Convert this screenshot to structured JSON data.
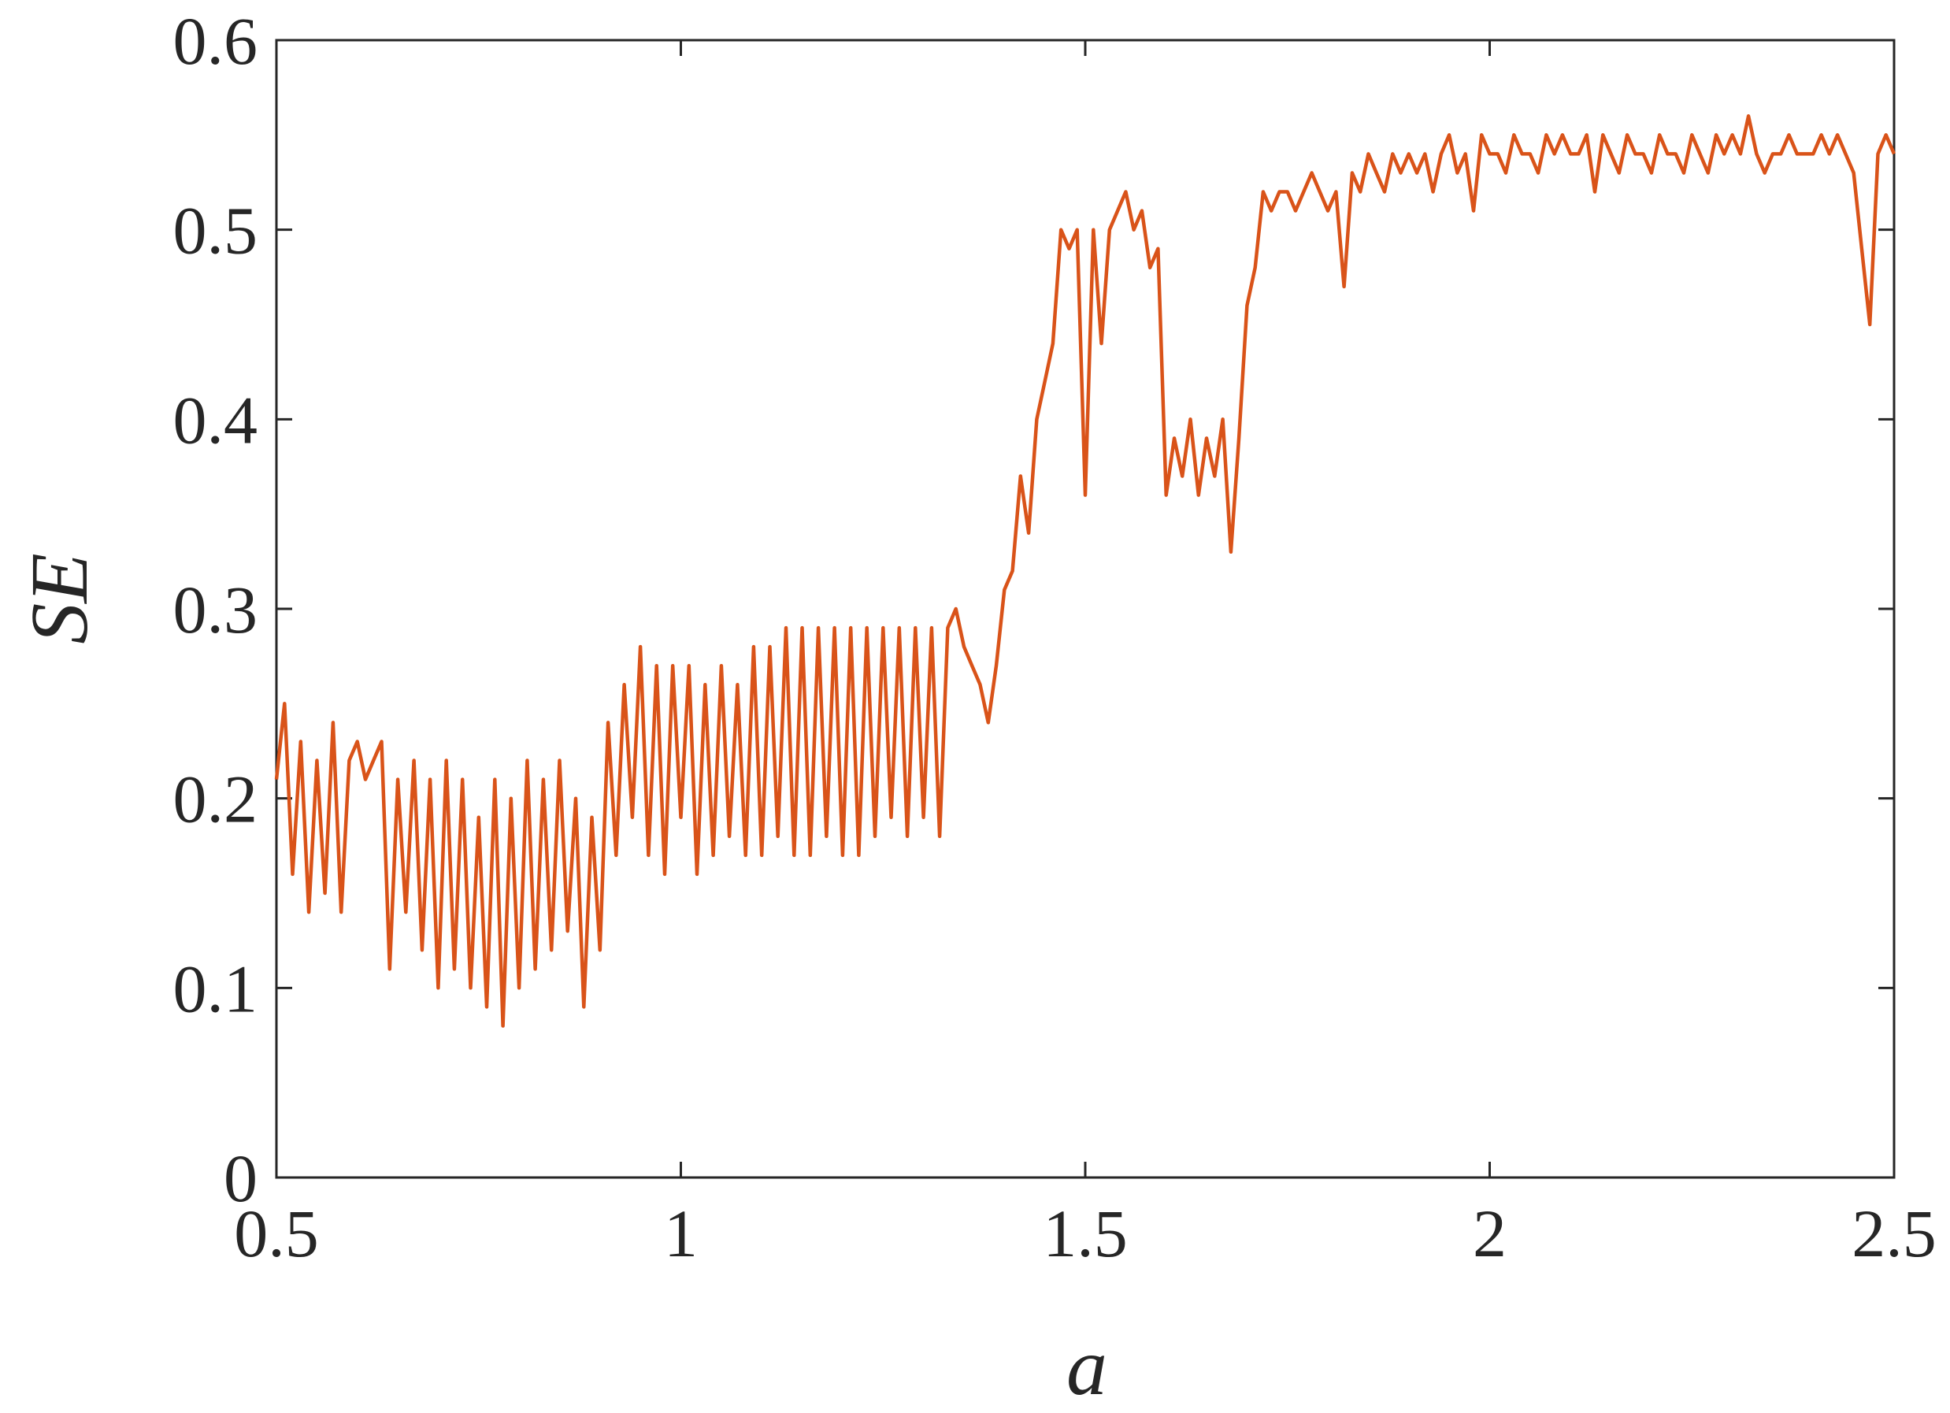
{
  "chart_data": {
    "type": "line",
    "xlabel": "a",
    "ylabel": "SE",
    "color": "#d95319",
    "x": [
      0.5,
      0.51,
      0.52,
      0.53,
      0.54,
      0.55,
      0.56,
      0.57,
      0.58,
      0.59,
      0.6,
      0.61,
      0.62,
      0.63,
      0.64,
      0.65,
      0.66,
      0.67,
      0.68,
      0.69,
      0.7,
      0.71,
      0.72,
      0.73,
      0.74,
      0.75,
      0.76,
      0.77,
      0.78,
      0.79,
      0.8,
      0.81,
      0.82,
      0.83,
      0.84,
      0.85,
      0.86,
      0.87,
      0.88,
      0.89,
      0.9,
      0.91,
      0.92,
      0.93,
      0.94,
      0.95,
      0.96,
      0.97,
      0.98,
      0.99,
      1.0,
      1.01,
      1.02,
      1.03,
      1.04,
      1.05,
      1.06,
      1.07,
      1.08,
      1.09,
      1.1,
      1.11,
      1.12,
      1.13,
      1.14,
      1.15,
      1.16,
      1.17,
      1.18,
      1.19,
      1.2,
      1.21,
      1.22,
      1.23,
      1.24,
      1.25,
      1.26,
      1.27,
      1.28,
      1.29,
      1.3,
      1.31,
      1.32,
      1.33,
      1.34,
      1.35,
      1.36,
      1.37,
      1.38,
      1.39,
      1.4,
      1.41,
      1.42,
      1.43,
      1.44,
      1.45,
      1.46,
      1.47,
      1.48,
      1.49,
      1.5,
      1.51,
      1.52,
      1.53,
      1.54,
      1.55,
      1.56,
      1.57,
      1.58,
      1.59,
      1.6,
      1.61,
      1.62,
      1.63,
      1.64,
      1.65,
      1.66,
      1.67,
      1.68,
      1.69,
      1.7,
      1.71,
      1.72,
      1.73,
      1.74,
      1.75,
      1.76,
      1.77,
      1.78,
      1.79,
      1.8,
      1.81,
      1.82,
      1.83,
      1.84,
      1.85,
      1.86,
      1.87,
      1.88,
      1.89,
      1.9,
      1.91,
      1.92,
      1.93,
      1.94,
      1.95,
      1.96,
      1.97,
      1.98,
      1.99,
      2.0,
      2.01,
      2.02,
      2.03,
      2.04,
      2.05,
      2.06,
      2.07,
      2.08,
      2.09,
      2.1,
      2.11,
      2.12,
      2.13,
      2.14,
      2.15,
      2.16,
      2.17,
      2.18,
      2.19,
      2.2,
      2.21,
      2.22,
      2.23,
      2.24,
      2.25,
      2.26,
      2.27,
      2.28,
      2.29,
      2.3,
      2.31,
      2.32,
      2.33,
      2.34,
      2.35,
      2.36,
      2.37,
      2.38,
      2.39,
      2.4,
      2.41,
      2.42,
      2.43,
      2.44,
      2.45,
      2.46,
      2.47,
      2.48,
      2.49,
      2.5
    ],
    "values": [
      0.21,
      0.25,
      0.16,
      0.23,
      0.14,
      0.22,
      0.15,
      0.24,
      0.14,
      0.22,
      0.23,
      0.21,
      0.22,
      0.23,
      0.11,
      0.21,
      0.14,
      0.22,
      0.12,
      0.21,
      0.1,
      0.22,
      0.11,
      0.21,
      0.1,
      0.19,
      0.09,
      0.21,
      0.08,
      0.2,
      0.1,
      0.22,
      0.11,
      0.21,
      0.12,
      0.22,
      0.13,
      0.2,
      0.09,
      0.19,
      0.12,
      0.24,
      0.17,
      0.26,
      0.19,
      0.28,
      0.17,
      0.27,
      0.16,
      0.27,
      0.19,
      0.27,
      0.16,
      0.26,
      0.17,
      0.27,
      0.18,
      0.26,
      0.17,
      0.28,
      0.17,
      0.28,
      0.18,
      0.29,
      0.17,
      0.29,
      0.17,
      0.29,
      0.18,
      0.29,
      0.17,
      0.29,
      0.17,
      0.29,
      0.18,
      0.29,
      0.19,
      0.29,
      0.18,
      0.29,
      0.19,
      0.29,
      0.18,
      0.29,
      0.3,
      0.28,
      0.27,
      0.26,
      0.24,
      0.27,
      0.31,
      0.32,
      0.37,
      0.34,
      0.4,
      0.42,
      0.44,
      0.5,
      0.49,
      0.5,
      0.36,
      0.5,
      0.44,
      0.5,
      0.51,
      0.52,
      0.5,
      0.51,
      0.48,
      0.49,
      0.36,
      0.39,
      0.37,
      0.4,
      0.36,
      0.39,
      0.37,
      0.4,
      0.33,
      0.39,
      0.46,
      0.48,
      0.52,
      0.51,
      0.52,
      0.52,
      0.51,
      0.52,
      0.53,
      0.52,
      0.51,
      0.52,
      0.47,
      0.53,
      0.52,
      0.54,
      0.53,
      0.52,
      0.54,
      0.53,
      0.54,
      0.53,
      0.54,
      0.52,
      0.54,
      0.55,
      0.53,
      0.54,
      0.51,
      0.55,
      0.54,
      0.54,
      0.53,
      0.55,
      0.54,
      0.54,
      0.53,
      0.55,
      0.54,
      0.55,
      0.54,
      0.54,
      0.55,
      0.52,
      0.55,
      0.54,
      0.53,
      0.55,
      0.54,
      0.54,
      0.53,
      0.55,
      0.54,
      0.54,
      0.53,
      0.55,
      0.54,
      0.53,
      0.55,
      0.54,
      0.55,
      0.54,
      0.56,
      0.54,
      0.53,
      0.54,
      0.54,
      0.55,
      0.54,
      0.54,
      0.54,
      0.55,
      0.54,
      0.55,
      0.54,
      0.53,
      0.49,
      0.45,
      0.54,
      0.55,
      0.54
    ],
    "xlim": [
      0.5,
      2.5
    ],
    "ylim": [
      0,
      0.6
    ],
    "xticks": [
      0.5,
      1,
      1.5,
      2,
      2.5
    ],
    "yticks": [
      0,
      0.1,
      0.2,
      0.3,
      0.4,
      0.5,
      0.6
    ]
  }
}
